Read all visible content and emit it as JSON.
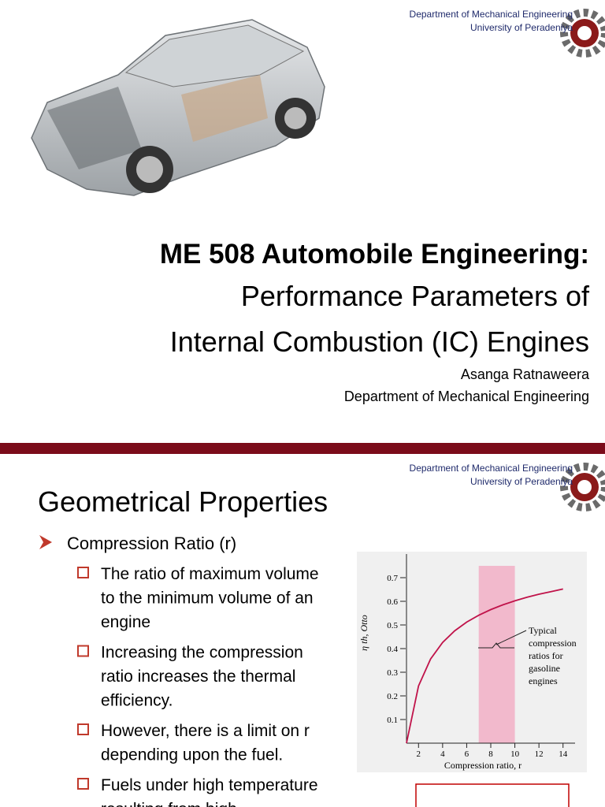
{
  "slide1": {
    "header": {
      "department": "Department of Mechanical Engineering",
      "university": "University of Peradeniya"
    },
    "title": "ME 508 Automobile Engineering:",
    "subtitle": [
      "Performance  Parameters of",
      "Internal Combustion (IC) Engines"
    ],
    "author": [
      "Asanga Ratnaweera",
      "Department of Mechanical Engineering"
    ]
  },
  "slide2": {
    "header": {
      "department": "Department of Mechanical Engineering",
      "university": "University of Peradeniya"
    },
    "title": "Geometrical Properties",
    "bullet": "Compression Ratio (r)",
    "sub_bullets": [
      [
        "The ratio of maximum volume",
        "to the minimum volume of an",
        "engine"
      ],
      [
        "Increasing the compression",
        "ratio increases the thermal",
        "efficiency."
      ],
      [
        "However, there is a limit on r",
        "depending upon the fuel."
      ],
      [
        "Fuels under high temperature",
        "resulting from high"
      ]
    ],
    "chart_data": {
      "type": "line",
      "x_label": "Compression ratio, r",
      "y_label": "η th, Otto",
      "annotation": [
        "Typical",
        "compression",
        "ratios for",
        "gasoline",
        "engines"
      ],
      "highlight": [
        7,
        10
      ],
      "x": [
        1,
        2,
        3,
        4,
        5,
        6,
        7,
        8,
        9,
        10,
        11,
        12,
        13,
        14
      ],
      "values": [
        0,
        0.242,
        0.356,
        0.426,
        0.475,
        0.512,
        0.541,
        0.565,
        0.585,
        0.602,
        0.617,
        0.63,
        0.641,
        0.652
      ],
      "color": "#c0134a",
      "xlim": [
        1,
        15
      ],
      "ylim": [
        0,
        0.8
      ],
      "xticks": [
        2,
        4,
        6,
        8,
        10,
        12,
        14
      ],
      "yticks": [
        0.1,
        0.2,
        0.3,
        0.4,
        0.5,
        0.6,
        0.7
      ]
    }
  }
}
